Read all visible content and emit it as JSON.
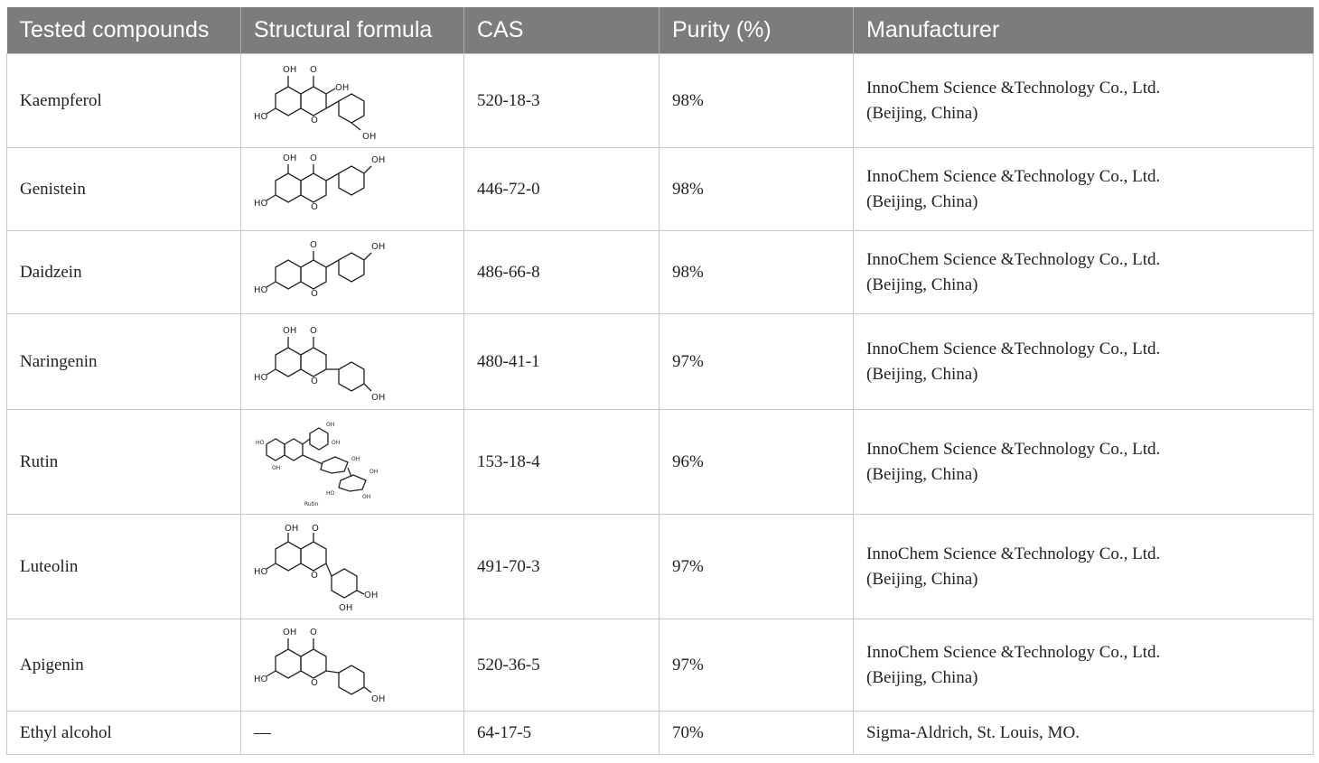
{
  "table": {
    "headers": {
      "compound": "Tested compounds",
      "formula": "Structural formula",
      "cas": "CAS",
      "purity": "Purity (%)",
      "manufacturer": "Manufacturer"
    },
    "rows": [
      {
        "compound": "Kaempferol",
        "cas": "520-18-3",
        "purity": "98%",
        "manufacturer_line1": "InnoChem Science &Technology Co., Ltd.",
        "manufacturer_line2": "(Beijing, China)"
      },
      {
        "compound": "Genistein",
        "cas": "446-72-0",
        "purity": "98%",
        "manufacturer_line1": "InnoChem Science &Technology Co., Ltd.",
        "manufacturer_line2": "(Beijing, China)"
      },
      {
        "compound": "Daidzein",
        "cas": "486-66-8",
        "purity": "98%",
        "manufacturer_line1": "InnoChem Science &Technology Co., Ltd.",
        "manufacturer_line2": "(Beijing, China)"
      },
      {
        "compound": "Naringenin",
        "cas": "480-41-1",
        "purity": "97%",
        "manufacturer_line1": "InnoChem Science &Technology Co., Ltd.",
        "manufacturer_line2": "(Beijing, China)"
      },
      {
        "compound": "Rutin",
        "cas": "153-18-4",
        "purity": "96%",
        "manufacturer_line1": "InnoChem Science &Technology Co., Ltd.",
        "manufacturer_line2": "(Beijing, China)"
      },
      {
        "compound": "Luteolin",
        "cas": "491-70-3",
        "purity": "97%",
        "manufacturer_line1": "InnoChem Science &Technology Co., Ltd.",
        "manufacturer_line2": "(Beijing, China)"
      },
      {
        "compound": "Apigenin",
        "cas": "520-36-5",
        "purity": "97%",
        "manufacturer_line1": "InnoChem Science &Technology Co., Ltd.",
        "manufacturer_line2": "(Beijing, China)"
      },
      {
        "compound": "Ethyl alcohol",
        "formula_text": "—",
        "cas": "64-17-5",
        "purity": "70%",
        "manufacturer_line1": "Sigma-Aldrich, St. Louis, MO."
      }
    ],
    "formula_labels": {
      "oh": "OH",
      "o": "O",
      "ho": "HO",
      "rutin_caption": "Rutin"
    }
  }
}
